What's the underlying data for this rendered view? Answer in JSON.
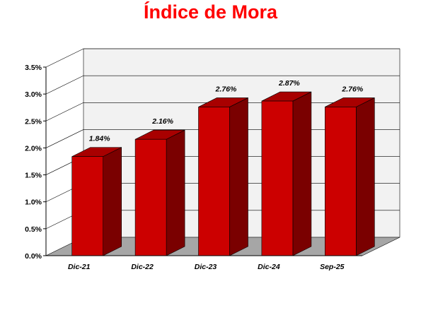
{
  "chart_data": {
    "type": "bar",
    "title": "Índice de Mora",
    "categories": [
      "Dic-21",
      "Dic-22",
      "Dic-23",
      "Dic-24",
      "Sep-25"
    ],
    "values": [
      1.84,
      2.16,
      2.76,
      2.87,
      2.76
    ],
    "data_labels": [
      "1.84%",
      "2.16%",
      "2.76%",
      "2.87%",
      "2.76%"
    ],
    "y_ticks": [
      0,
      0.5,
      1.0,
      1.5,
      2.0,
      2.5,
      3.0,
      3.5
    ],
    "y_tick_labels": [
      "0.0%",
      "0.5%",
      "1.0%",
      "1.5%",
      "2.0%",
      "2.5%",
      "3.0%",
      "3.5%"
    ],
    "ylim": [
      0,
      3.5
    ],
    "xlabel": "",
    "ylabel": "",
    "grid": true,
    "legend": "none",
    "style": "3d-bar",
    "colors": {
      "title": "#ff0000",
      "bar_front": "#cc0000",
      "bar_side": "#7a0000",
      "bar_top": "#a80000",
      "floor": "#a6a6a6",
      "back_wall": "#f2f2f2",
      "grid": "#000000"
    }
  }
}
